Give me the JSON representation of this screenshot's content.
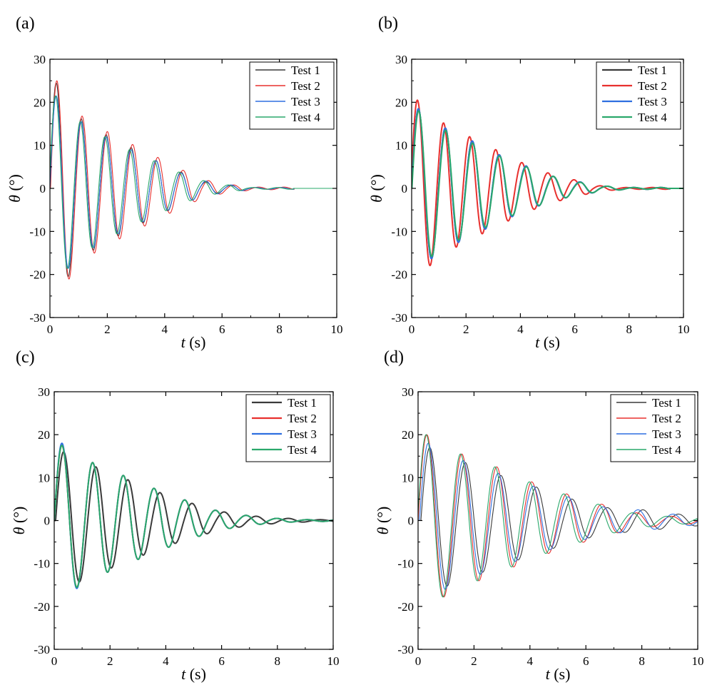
{
  "figure": {
    "axis_style": {
      "frame_color": "#000000",
      "background": "#ffffff"
    },
    "series_colors": {
      "Test 1": "#3a3a3a",
      "Test 2": "#e8302e",
      "Test 3": "#2e6fe0",
      "Test 4": "#2aa86b"
    }
  },
  "chart_data": [
    {
      "panel": "(a)",
      "type": "line",
      "xlabel_var": "t",
      "xlabel_unit": " (s)",
      "ylabel_var": "θ",
      "ylabel_unit": " (°)",
      "xlim": [
        0,
        10
      ],
      "ylim": [
        -30,
        30
      ],
      "xticks": [
        0,
        2,
        4,
        6,
        8,
        10
      ],
      "yticks": [
        -30,
        -20,
        -10,
        0,
        10,
        20,
        30
      ],
      "legend": "top-right",
      "legend_labels": [
        "Test 1",
        "Test 2",
        "Test 3",
        "Test 4"
      ],
      "line_weight": "thin",
      "series": [
        {
          "name": "Test 1",
          "period": 0.87,
          "delay": 0.0,
          "peaks": [
            24.5,
            16.2,
            12.5,
            9.5,
            6.5,
            3.8,
            1.5,
            0.7,
            0.2
          ],
          "end": 8.5
        },
        {
          "name": "Test 2",
          "period": 0.88,
          "delay": 0.02,
          "peaks": [
            25,
            16.8,
            13.2,
            10.2,
            7.2,
            4.2,
            1.8,
            0.8,
            0.3
          ],
          "end": 8.5
        },
        {
          "name": "Test 3",
          "period": 0.87,
          "delay": 0.0,
          "peaks": [
            21.5,
            15.5,
            12,
            9,
            6.4,
            3.6,
            1.7,
            0.8,
            0.2
          ],
          "end": 8.5
        },
        {
          "name": "Test 4",
          "period": 0.86,
          "delay": -0.02,
          "peaks": [
            21.5,
            15.5,
            12,
            9,
            6.4,
            3.8,
            1.8,
            0.8,
            0.2
          ],
          "end": 8.5
        }
      ]
    },
    {
      "panel": "(b)",
      "type": "line",
      "xlabel_var": "t",
      "xlabel_unit": " (s)",
      "ylabel_var": "θ",
      "ylabel_unit": " (°)",
      "xlim": [
        0,
        10
      ],
      "ylim": [
        -30,
        30
      ],
      "xticks": [
        0,
        2,
        4,
        6,
        8,
        10
      ],
      "yticks": [
        -30,
        -20,
        -10,
        0,
        10,
        20,
        30
      ],
      "legend": "top-right",
      "legend_labels": [
        "Test 1",
        "Test 2",
        "Test 3",
        "Test 4"
      ],
      "line_weight": "thick",
      "series": [
        {
          "name": "Test 1",
          "period": 0.99,
          "delay": 0.0,
          "peaks": [
            18.5,
            14,
            11,
            7.8,
            5.2,
            2.8,
            1.5,
            0.5,
            0.2
          ],
          "end": 9.5
        },
        {
          "name": "Test 2",
          "period": 0.96,
          "delay": -0.03,
          "peaks": [
            20.5,
            15.2,
            12,
            9,
            6,
            3.6,
            2,
            0.6,
            0.2
          ],
          "end": 9.5
        },
        {
          "name": "Test 3",
          "period": 0.99,
          "delay": 0.0,
          "peaks": [
            18.5,
            14,
            11,
            7.8,
            5.2,
            2.8,
            1.5,
            0.5,
            0.2
          ],
          "end": 9.5
        },
        {
          "name": "Test 4",
          "period": 0.99,
          "delay": 0.01,
          "peaks": [
            18,
            13.5,
            10.5,
            7.5,
            5,
            2.8,
            1.4,
            0.5,
            0.2
          ],
          "end": 9.5
        }
      ]
    },
    {
      "panel": "(c)",
      "type": "line",
      "xlabel_var": "t",
      "xlabel_unit": " (s)",
      "ylabel_var": "θ",
      "ylabel_unit": " (°)",
      "xlim": [
        0,
        10
      ],
      "ylim": [
        -30,
        30
      ],
      "xticks": [
        0,
        2,
        4,
        6,
        8,
        10
      ],
      "yticks": [
        -30,
        -20,
        -10,
        0,
        10,
        20,
        30
      ],
      "legend": "top-right",
      "legend_labels": [
        "Test 1",
        "Test 2",
        "Test 3",
        "Test 4"
      ],
      "line_weight": "thick",
      "series": [
        {
          "name": "Test 1",
          "period": 1.15,
          "delay": 0.05,
          "peaks": [
            16,
            12.5,
            9.5,
            6.5,
            4,
            2,
            1,
            0.5,
            0.2
          ],
          "end": 10
        },
        {
          "name": "Test 2",
          "period": 1.1,
          "delay": 0.0,
          "peaks": [
            17.5,
            13.5,
            10.5,
            7.5,
            4.8,
            2.4,
            1.2,
            0.5,
            0.2
          ],
          "end": 10
        },
        {
          "name": "Test 3",
          "period": 1.1,
          "delay": 0.0,
          "peaks": [
            18,
            13.5,
            10.5,
            7.5,
            4.8,
            2.4,
            1.2,
            0.5,
            0.2
          ],
          "end": 10
        },
        {
          "name": "Test 4",
          "period": 1.1,
          "delay": 0.0,
          "peaks": [
            17.5,
            13.5,
            10.5,
            7.5,
            4.8,
            2.4,
            1.2,
            0.5,
            0.2
          ],
          "end": 10
        }
      ]
    },
    {
      "panel": "(d)",
      "type": "line",
      "xlabel_var": "t",
      "xlabel_unit": " (s)",
      "ylabel_var": "θ",
      "ylabel_unit": " (°)",
      "xlim": [
        0,
        10
      ],
      "ylim": [
        -30,
        30
      ],
      "xticks": [
        0,
        2,
        4,
        6,
        8,
        10
      ],
      "yticks": [
        -30,
        -20,
        -10,
        0,
        10,
        20,
        30
      ],
      "legend": "top-right",
      "legend_labels": [
        "Test 1",
        "Test 2",
        "Test 3",
        "Test 4"
      ],
      "line_weight": "thin",
      "series": [
        {
          "name": "Test 1",
          "period": 1.27,
          "delay": 0.1,
          "peaks": [
            17,
            13.5,
            10.5,
            7.8,
            5,
            3,
            2.5,
            1.5,
            1.0
          ],
          "end": 10
        },
        {
          "name": "Test 2",
          "period": 1.25,
          "delay": 0.0,
          "peaks": [
            20,
            15.5,
            12.5,
            9,
            6.2,
            3.8,
            1.8,
            1.0,
            0.6
          ],
          "end": 10
        },
        {
          "name": "Test 3",
          "period": 1.25,
          "delay": 0.05,
          "peaks": [
            18,
            14,
            11,
            8,
            5.5,
            3.2,
            2.5,
            1.5,
            0.8
          ],
          "end": 10
        },
        {
          "name": "Test 4",
          "period": 1.23,
          "delay": -0.02,
          "peaks": [
            20,
            15.5,
            12.5,
            9,
            6.2,
            3.8,
            1.8,
            1.0,
            0.6
          ],
          "end": 10
        }
      ]
    }
  ]
}
